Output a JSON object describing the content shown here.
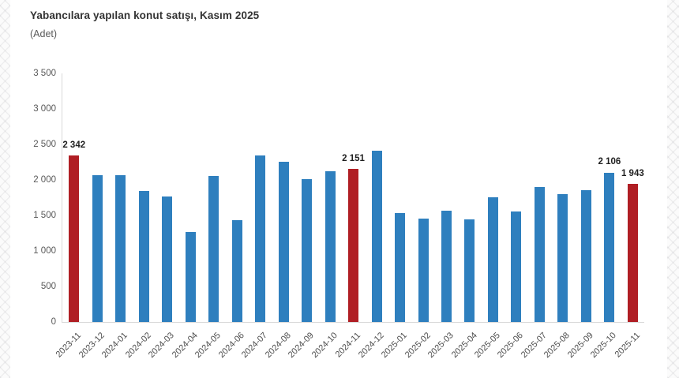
{
  "header": {
    "title": "Yabancılara yapılan konut satışı, Kasım 2025",
    "subtitle": "(Adet)"
  },
  "colors": {
    "bar_blue": "#2e7fbe",
    "bar_red": "#b01e24",
    "axis_line": "#d9d9d9",
    "tick_text": "#595959",
    "value_label_text": "#1f1f1f"
  },
  "chart_data": {
    "type": "bar",
    "title": "Yabancılara yapılan konut satışı, Kasım 2025",
    "unit": "Adet",
    "ylim": [
      0,
      3500
    ],
    "grid": false,
    "y_tick_labels": [
      "3 500",
      "3 000",
      "2 500",
      "2 000",
      "1 500",
      "1 000",
      "500",
      "0"
    ],
    "categories": [
      "2023-11",
      "2023-12",
      "2024-01",
      "2024-02",
      "2024-03",
      "2024-04",
      "2024-05",
      "2024-06",
      "2024-07",
      "2024-08",
      "2024-09",
      "2024-10",
      "2024-11",
      "2024-12",
      "2025-01",
      "2025-02",
      "2025-03",
      "2025-04",
      "2025-05",
      "2025-06",
      "2025-07",
      "2025-08",
      "2025-09",
      "2025-10",
      "2025-11"
    ],
    "values": [
      2342,
      2062,
      2062,
      1846,
      1772,
      1271,
      2060,
      1437,
      2345,
      2252,
      2012,
      2122,
      2151,
      2416,
      1539,
      1457,
      1567,
      1440,
      1761,
      1560,
      1906,
      1800,
      1861,
      2106,
      1943
    ],
    "highlighted_categories": [
      "2023-11",
      "2024-11",
      "2025-11"
    ],
    "data_labels": [
      {
        "category": "2023-11",
        "text": "2 342"
      },
      {
        "category": "2024-11",
        "text": "2 151"
      },
      {
        "category": "2025-10",
        "text": "2 106"
      },
      {
        "category": "2025-11",
        "text": "1 943"
      }
    ]
  }
}
